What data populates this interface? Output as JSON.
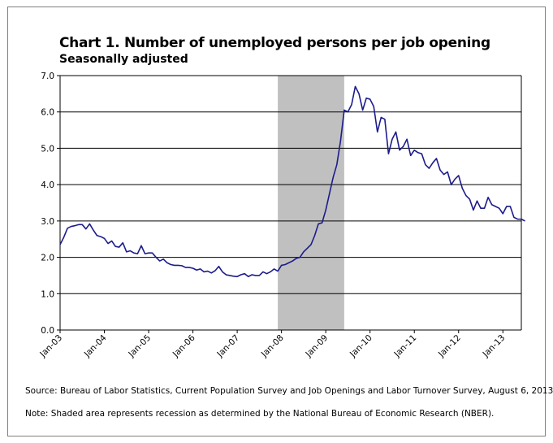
{
  "chart_data": {
    "type": "line",
    "title": "Chart 1. Number of unemployed persons per job opening",
    "subtitle": "Seasonally adjusted",
    "xlabel": "",
    "ylabel": "",
    "ylim": [
      0,
      7
    ],
    "y_ticks": [
      "0.0",
      "1.0",
      "2.0",
      "3.0",
      "4.0",
      "5.0",
      "6.0",
      "7.0"
    ],
    "x_tick_labels": [
      "Jan-03",
      "Jan-04",
      "Jan-05",
      "Jan-06",
      "Jan-07",
      "Jan-08",
      "Jan-09",
      "Jan-10",
      "Jan-11",
      "Jan-12",
      "Jan-13"
    ],
    "x_range_months": [
      "Jan-03",
      "Jun-13"
    ],
    "grid": true,
    "recession": {
      "start": "Dec-07",
      "end": "Jun-09",
      "color": "#c0c0c0"
    },
    "series": [
      {
        "name": "Unemployed persons per job opening",
        "color": "#1c1c8c",
        "start": "Jan-03",
        "values": [
          2.35,
          2.55,
          2.8,
          2.85,
          2.87,
          2.9,
          2.9,
          2.78,
          2.92,
          2.75,
          2.6,
          2.57,
          2.52,
          2.38,
          2.45,
          2.3,
          2.28,
          2.4,
          2.15,
          2.18,
          2.12,
          2.1,
          2.32,
          2.1,
          2.12,
          2.12,
          2.0,
          1.9,
          1.95,
          1.85,
          1.8,
          1.78,
          1.78,
          1.77,
          1.72,
          1.72,
          1.7,
          1.65,
          1.68,
          1.6,
          1.62,
          1.57,
          1.63,
          1.75,
          1.6,
          1.52,
          1.5,
          1.48,
          1.47,
          1.52,
          1.55,
          1.47,
          1.52,
          1.5,
          1.5,
          1.6,
          1.55,
          1.6,
          1.68,
          1.62,
          1.78,
          1.8,
          1.85,
          1.9,
          1.97,
          2.0,
          2.15,
          2.25,
          2.35,
          2.6,
          2.92,
          2.95,
          3.3,
          3.75,
          4.2,
          4.55,
          5.2,
          6.05,
          6.0,
          6.2,
          6.7,
          6.5,
          6.05,
          6.38,
          6.35,
          6.15,
          5.45,
          5.85,
          5.8,
          4.85,
          5.25,
          5.45,
          4.95,
          5.05,
          5.25,
          4.8,
          4.95,
          4.88,
          4.85,
          4.55,
          4.45,
          4.6,
          4.72,
          4.4,
          4.28,
          4.35,
          4.0,
          4.15,
          4.25,
          3.9,
          3.7,
          3.6,
          3.3,
          3.55,
          3.35,
          3.35,
          3.65,
          3.45,
          3.4,
          3.35,
          3.2,
          3.4,
          3.4,
          3.1,
          3.05,
          3.05,
          3.0
        ]
      }
    ]
  },
  "notes": {
    "source": "Source: Bureau of Labor Statistics, Current Population Survey and Job Openings and Labor Turnover Survey, August 6, 2013.",
    "shading": "Note: Shaded area represents recession as determined by the National Bureau of Economic Research (NBER)."
  }
}
